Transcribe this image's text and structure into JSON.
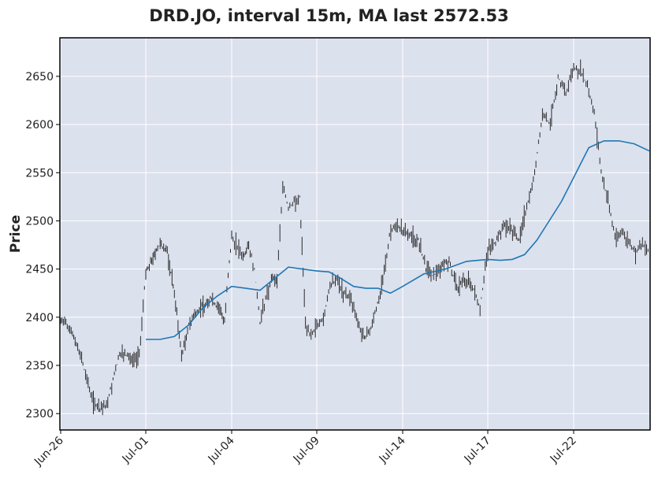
{
  "chart_data": {
    "type": "candlestick",
    "title": "DRD.JO, interval 15m, MA last 2572.53",
    "xlabel": "",
    "ylabel": "Price",
    "ylim": [
      2283,
      2690
    ],
    "yticks": [
      2300,
      2350,
      2400,
      2450,
      2500,
      2550,
      2600,
      2650
    ],
    "xticks": [
      "Jun-26",
      "Jul-01",
      "Jul-04",
      "Jul-09",
      "Jul-14",
      "Jul-17",
      "Jul-22"
    ],
    "grid": true,
    "colors": {
      "background": "#dce1ee",
      "grid": "#ffffff",
      "candles": "#2b2b2b",
      "ma": "#1f77b4",
      "frame": "#000000"
    },
    "price_series": {
      "name": "",
      "points": [
        [
          "Jun-26",
          2398
        ],
        [
          "",
          2392
        ],
        [
          "",
          2380
        ],
        [
          "",
          2362
        ],
        [
          "",
          2335
        ],
        [
          "",
          2312
        ],
        [
          "",
          2303
        ],
        [
          "",
          2310
        ],
        [
          "",
          2335
        ],
        [
          "",
          2362
        ],
        [
          "",
          2360
        ],
        [
          "",
          2356
        ],
        [
          "",
          2359
        ],
        [
          "Jul-01",
          2448
        ],
        [
          "",
          2462
        ],
        [
          "",
          2476
        ],
        [
          "",
          2468
        ],
        [
          "",
          2425
        ],
        [
          "",
          2360
        ],
        [
          "",
          2392
        ],
        [
          "",
          2405
        ],
        [
          "",
          2412
        ],
        [
          "",
          2420
        ],
        [
          "",
          2410
        ],
        [
          "",
          2398
        ],
        [
          "Jul-04",
          2485
        ],
        [
          "",
          2472
        ],
        [
          "",
          2462
        ],
        [
          "",
          2475
        ],
        [
          "",
          2450
        ],
        [
          "",
          2395
        ],
        [
          "",
          2420
        ],
        [
          "",
          2440
        ],
        [
          "",
          2436
        ],
        [
          "",
          2540
        ],
        [
          "",
          2512
        ],
        [
          "",
          2520
        ],
        [
          "",
          2525
        ],
        [
          "",
          2395
        ],
        [
          "",
          2380
        ],
        [
          "Jul-09",
          2392
        ],
        [
          "",
          2398
        ],
        [
          "",
          2432
        ],
        [
          "",
          2440
        ],
        [
          "",
          2425
        ],
        [
          "",
          2420
        ],
        [
          "",
          2400
        ],
        [
          "",
          2378
        ],
        [
          "",
          2385
        ],
        [
          "",
          2410
        ],
        [
          "",
          2435
        ],
        [
          "",
          2485
        ],
        [
          "",
          2498
        ],
        [
          "Jul-14",
          2490
        ],
        [
          "",
          2485
        ],
        [
          "",
          2480
        ],
        [
          "",
          2450
        ],
        [
          "",
          2442
        ],
        [
          "",
          2455
        ],
        [
          "",
          2458
        ],
        [
          "",
          2430
        ],
        [
          "",
          2440
        ],
        [
          "",
          2432
        ],
        [
          "",
          2410
        ],
        [
          "Jul-17",
          2470
        ],
        [
          "",
          2478
        ],
        [
          "",
          2495
        ],
        [
          "",
          2492
        ],
        [
          "",
          2480
        ],
        [
          "",
          2515
        ],
        [
          "",
          2550
        ],
        [
          "",
          2610
        ],
        [
          "",
          2600
        ],
        [
          "",
          2650
        ],
        [
          "",
          2632
        ],
        [
          "Jul-22",
          2660
        ],
        [
          "",
          2655
        ],
        [
          "",
          2640
        ],
        [
          "",
          2612
        ],
        [
          "",
          2550
        ],
        [
          "",
          2520
        ],
        [
          "",
          2485
        ],
        [
          "",
          2488
        ],
        [
          "",
          2478
        ],
        [
          "",
          2466
        ],
        [
          "",
          2475
        ],
        [
          "",
          2470
        ]
      ]
    },
    "moving_average": {
      "name": "",
      "points": [
        [
          "Jul-01",
          2377
        ],
        [
          "",
          2377
        ],
        [
          "",
          2380
        ],
        [
          "",
          2392
        ],
        [
          "",
          2410
        ],
        [
          "",
          2422
        ],
        [
          "Jul-04",
          2432
        ],
        [
          "",
          2430
        ],
        [
          "",
          2428
        ],
        [
          "",
          2440
        ],
        [
          "",
          2452
        ],
        [
          "",
          2450
        ],
        [
          "Jul-09",
          2448
        ],
        [
          "",
          2447
        ],
        [
          "",
          2440
        ],
        [
          "",
          2432
        ],
        [
          "",
          2430
        ],
        [
          "",
          2430
        ],
        [
          "",
          2425
        ],
        [
          "Jul-14",
          2432
        ],
        [
          "",
          2445
        ],
        [
          "",
          2450
        ],
        [
          "",
          2458
        ],
        [
          "Jul-17",
          2460
        ],
        [
          "",
          2459
        ],
        [
          "",
          2460
        ],
        [
          "",
          2465
        ],
        [
          "",
          2480
        ],
        [
          "",
          2500
        ],
        [
          "",
          2520
        ],
        [
          "Jul-22",
          2545
        ],
        [
          "",
          2576
        ],
        [
          "",
          2583
        ],
        [
          "",
          2583
        ],
        [
          "",
          2580
        ],
        [
          "",
          2572.53
        ]
      ]
    }
  }
}
